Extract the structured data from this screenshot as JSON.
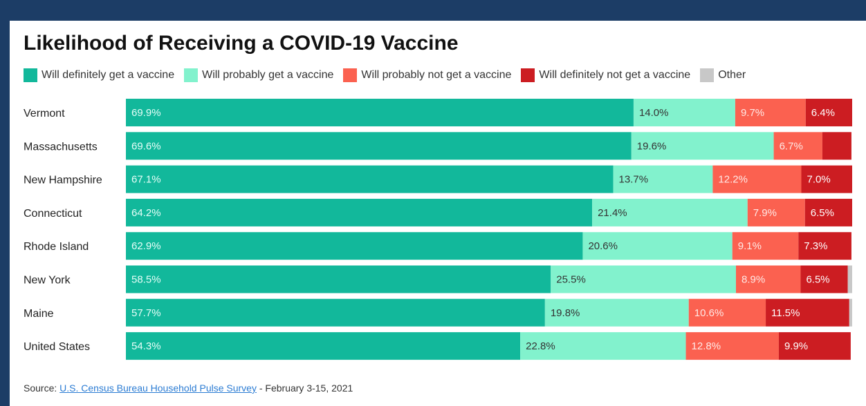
{
  "chart_data": {
    "type": "bar",
    "orientation": "horizontal",
    "stacked": true,
    "title": "Likelihood of Receiving a COVID-19 Vaccine",
    "categories": [
      "Vermont",
      "Massachusetts",
      "New Hampshire",
      "Connecticut",
      "Rhode Island",
      "New York",
      "Maine",
      "United States"
    ],
    "series": [
      {
        "name": "Will definitely get a vaccine",
        "color": "#12b89b",
        "label_color": "#e8fff9",
        "values": [
          69.9,
          69.6,
          67.1,
          64.2,
          62.9,
          58.5,
          57.7,
          54.3
        ],
        "labels": [
          "69.9%",
          "69.6%",
          "67.1%",
          "64.2%",
          "62.9%",
          "58.5%",
          "57.7%",
          "54.3%"
        ]
      },
      {
        "name": "Will probably get a vaccine",
        "color": "#82f2cd",
        "label_color": "#333333",
        "values": [
          14.0,
          19.6,
          13.7,
          21.4,
          20.6,
          25.5,
          19.8,
          22.8
        ],
        "labels": [
          "14.0%",
          "19.6%",
          "13.7%",
          "21.4%",
          "20.6%",
          "25.5%",
          "19.8%",
          "22.8%"
        ]
      },
      {
        "name": "Will probably not get a vaccine",
        "color": "#fb6150",
        "label_color": "#ffe9e6",
        "values": [
          9.7,
          6.7,
          12.2,
          7.9,
          9.1,
          8.9,
          10.6,
          12.8
        ],
        "labels": [
          "9.7%",
          "6.7%",
          "12.2%",
          "7.9%",
          "9.1%",
          "8.9%",
          "10.6%",
          "12.8%"
        ]
      },
      {
        "name": "Will definitely not get a vaccine",
        "color": "#cc1d22",
        "label_color": "#ffffff",
        "values": [
          6.4,
          4.0,
          7.0,
          6.5,
          7.3,
          6.5,
          11.5,
          9.9
        ],
        "labels": [
          "6.4%",
          "",
          "7.0%",
          "6.5%",
          "7.3%",
          "6.5%",
          "11.5%",
          "9.9%"
        ]
      },
      {
        "name": "Other",
        "color": "#c8c8c8",
        "label_color": "#333333",
        "values": [
          0,
          0,
          0,
          0,
          0,
          0.6,
          0.4,
          0
        ],
        "labels": [
          "",
          "",
          "",
          "",
          "",
          "",
          "",
          ""
        ]
      }
    ],
    "xlim": [
      0,
      100
    ],
    "legend_position": "top",
    "grid": false
  },
  "source": {
    "prefix": "Source: ",
    "link_text": "U.S. Census Bureau Household Pulse Survey",
    "suffix": " - February 3-15, 2021"
  }
}
